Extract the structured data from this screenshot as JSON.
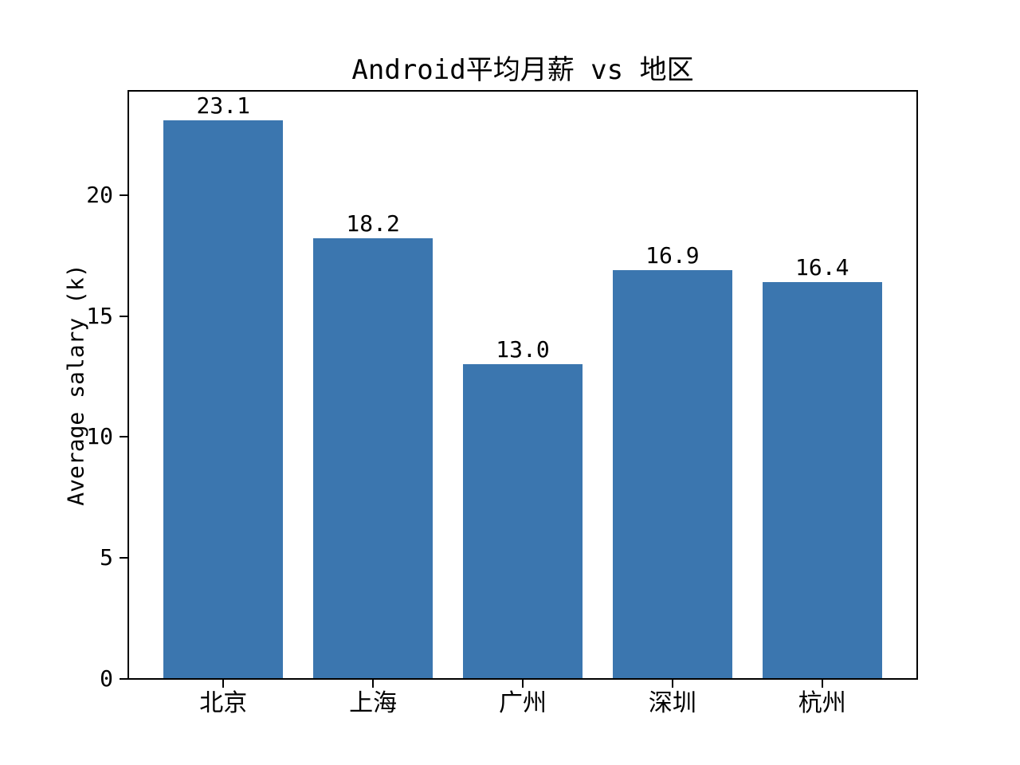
{
  "figure": {
    "background": "#ffffff"
  },
  "chart_data": {
    "type": "bar",
    "title": "Android平均月薪 vs 地区",
    "categories": [
      "北京",
      "上海",
      "广州",
      "深圳",
      "杭州"
    ],
    "values": [
      23.1,
      18.2,
      13.0,
      16.9,
      16.4
    ],
    "bar_labels": [
      "23.1",
      "18.2",
      "13.0",
      "16.9",
      "16.4"
    ],
    "xlabel": "",
    "ylabel": "Average salary (k)",
    "yticks": [
      0,
      5,
      10,
      15,
      20
    ],
    "ylim": [
      0,
      24.34
    ],
    "bar_color": "#3b76af",
    "text_color": "#000000",
    "spine_color": "#000000",
    "grid": false,
    "legend_position": "none"
  }
}
